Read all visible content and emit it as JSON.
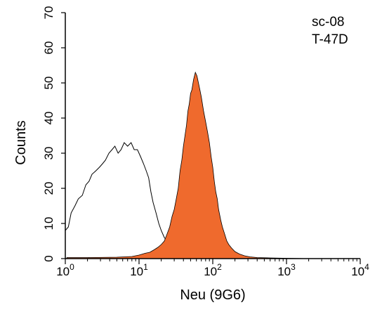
{
  "chart_data": {
    "type": "area",
    "title": "",
    "xlabel": "Neu (9G6)",
    "ylabel": "Counts",
    "xscale": "log",
    "xlim": [
      1,
      10000
    ],
    "ylim": [
      0,
      70
    ],
    "grid": false,
    "legend": "none",
    "x_ticks": [
      {
        "value": 1,
        "base": "10",
        "exp": "0"
      },
      {
        "value": 10,
        "base": "10",
        "exp": "1"
      },
      {
        "value": 100,
        "base": "10",
        "exp": "2"
      },
      {
        "value": 1000,
        "base": "10",
        "exp": "3"
      },
      {
        "value": 10000,
        "base": "10",
        "exp": "4"
      }
    ],
    "y_ticks": [
      {
        "value": 0,
        "label": "0"
      },
      {
        "value": 10,
        "label": "10"
      },
      {
        "value": 20,
        "label": "20"
      },
      {
        "value": 30,
        "label": "30"
      },
      {
        "value": 40,
        "label": "40"
      },
      {
        "value": 50,
        "label": "50"
      },
      {
        "value": 60,
        "label": "60"
      },
      {
        "value": 70,
        "label": "70"
      }
    ],
    "annotations": [
      "sc-08",
      "T-47D"
    ],
    "series": [
      {
        "style": "outline",
        "color": "#000000",
        "points": [
          [
            1.0,
            8
          ],
          [
            1.1,
            9
          ],
          [
            1.2,
            13
          ],
          [
            1.35,
            15
          ],
          [
            1.5,
            17
          ],
          [
            1.7,
            18
          ],
          [
            1.9,
            21
          ],
          [
            2.1,
            22
          ],
          [
            2.3,
            24
          ],
          [
            2.6,
            25
          ],
          [
            2.9,
            26
          ],
          [
            3.2,
            27
          ],
          [
            3.5,
            28
          ],
          [
            3.9,
            30
          ],
          [
            4.3,
            31
          ],
          [
            4.7,
            32
          ],
          [
            5.2,
            30
          ],
          [
            5.7,
            31
          ],
          [
            6.3,
            33
          ],
          [
            7.0,
            32
          ],
          [
            7.8,
            33
          ],
          [
            8.6,
            31
          ],
          [
            9.5,
            31
          ],
          [
            10.5,
            29
          ],
          [
            11.5,
            27
          ],
          [
            12.5,
            25
          ],
          [
            13.5,
            23
          ],
          [
            14.5,
            19
          ],
          [
            15.5,
            16
          ],
          [
            17,
            13
          ],
          [
            18.5,
            10
          ],
          [
            20,
            8
          ],
          [
            22,
            6
          ],
          [
            24,
            5
          ],
          [
            27,
            4
          ],
          [
            30,
            3
          ],
          [
            34,
            2.5
          ],
          [
            38,
            2
          ],
          [
            45,
            1.5
          ],
          [
            55,
            1
          ],
          [
            70,
            0.8
          ],
          [
            90,
            0.5
          ],
          [
            120,
            0.3
          ],
          [
            160,
            0.2
          ],
          [
            220,
            0.1
          ],
          [
            300,
            0
          ]
        ]
      },
      {
        "style": "filled",
        "color": "#ef6a2d",
        "points": [
          [
            1.05,
            0.3
          ],
          [
            2,
            0.3
          ],
          [
            5,
            0.4
          ],
          [
            8,
            0.6
          ],
          [
            10,
            1
          ],
          [
            12,
            1.5
          ],
          [
            14,
            1.8
          ],
          [
            16,
            2.5
          ],
          [
            18,
            3.2
          ],
          [
            20,
            4
          ],
          [
            22,
            5
          ],
          [
            24,
            7
          ],
          [
            26,
            9
          ],
          [
            28,
            12
          ],
          [
            30,
            14
          ],
          [
            32,
            17
          ],
          [
            34,
            20
          ],
          [
            36,
            25
          ],
          [
            38,
            28
          ],
          [
            40,
            32
          ],
          [
            42,
            35
          ],
          [
            44,
            38
          ],
          [
            46,
            42
          ],
          [
            48,
            44
          ],
          [
            50,
            47
          ],
          [
            52,
            48
          ],
          [
            55,
            51
          ],
          [
            58,
            53
          ],
          [
            61,
            52
          ],
          [
            64,
            50
          ],
          [
            67,
            48
          ],
          [
            70,
            46
          ],
          [
            75,
            42
          ],
          [
            80,
            39
          ],
          [
            85,
            36
          ],
          [
            90,
            33
          ],
          [
            95,
            29
          ],
          [
            100,
            26
          ],
          [
            105,
            22
          ],
          [
            110,
            19
          ],
          [
            115,
            17
          ],
          [
            120,
            14
          ],
          [
            128,
            11
          ],
          [
            135,
            9
          ],
          [
            145,
            7
          ],
          [
            155,
            5
          ],
          [
            165,
            4
          ],
          [
            180,
            3
          ],
          [
            200,
            2
          ],
          [
            230,
            1.3
          ],
          [
            270,
            0.8
          ],
          [
            320,
            0.5
          ],
          [
            400,
            0.3
          ],
          [
            600,
            0.2
          ],
          [
            1000,
            0.1
          ],
          [
            2000,
            0
          ]
        ]
      }
    ]
  }
}
